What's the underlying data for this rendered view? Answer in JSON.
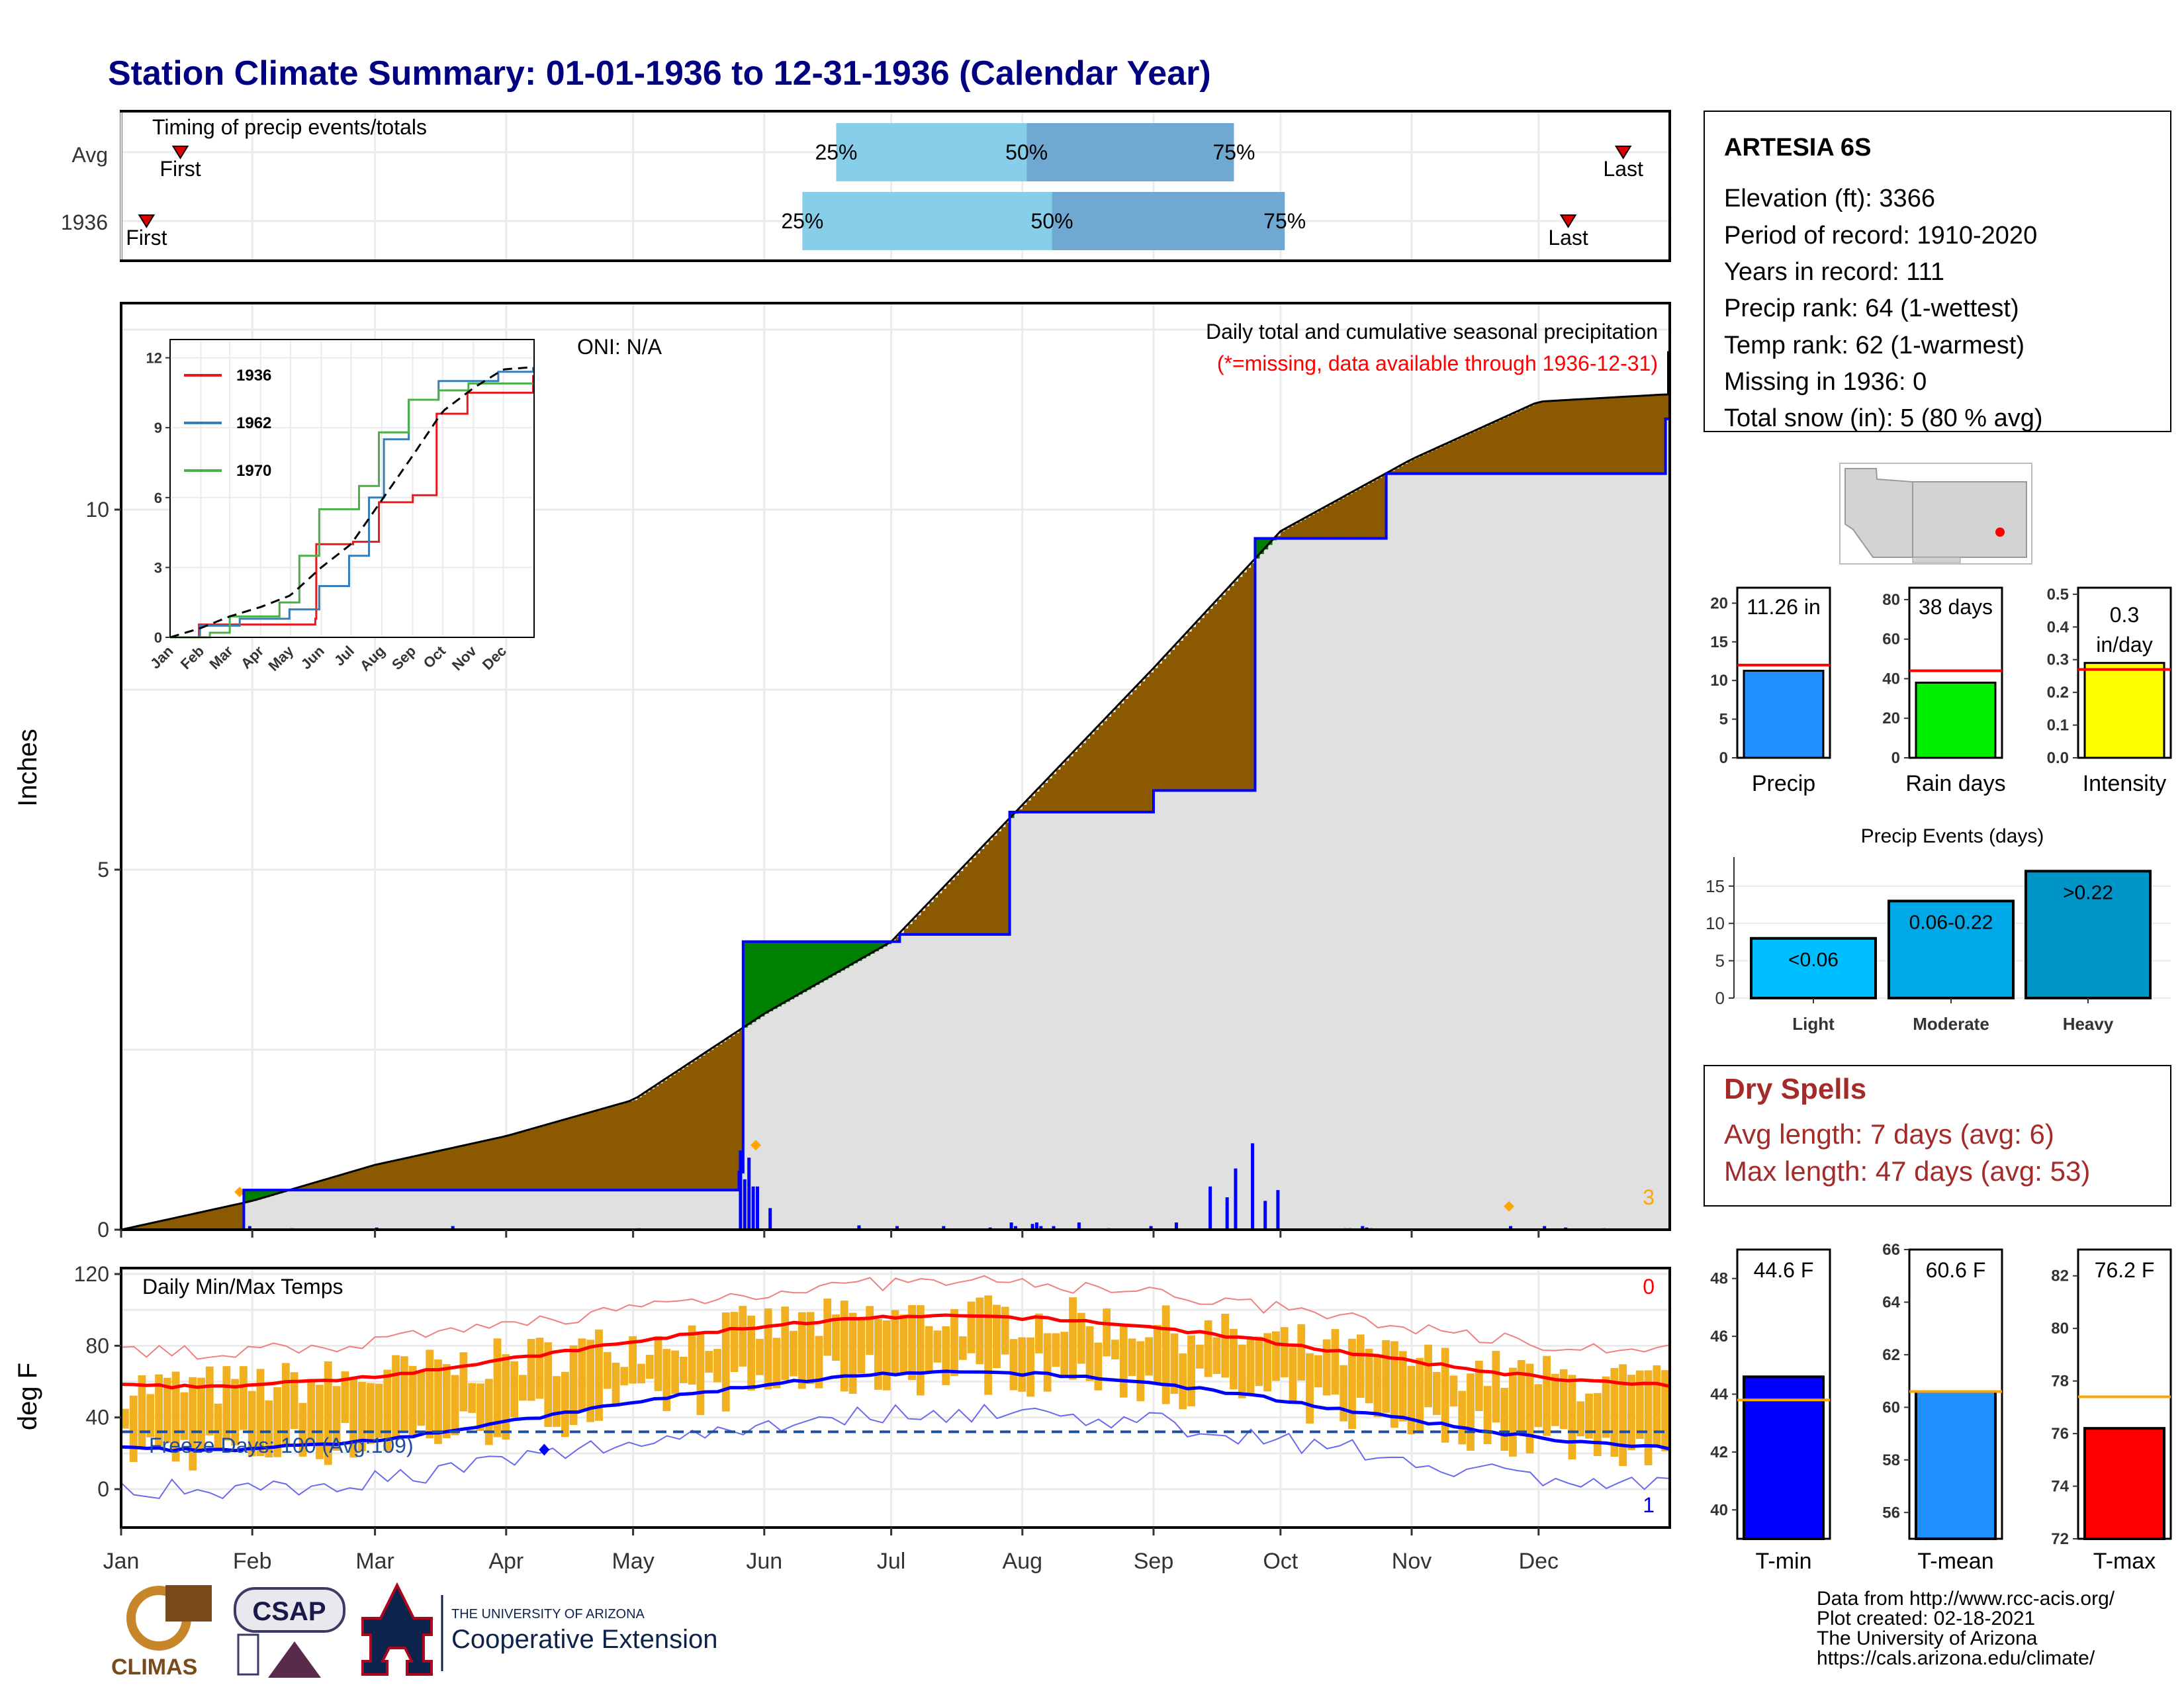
{
  "title": "Station Climate Summary: 01-01-1936 to 12-31-1936 (Calendar Year)",
  "months": [
    "Jan",
    "Feb",
    "Mar",
    "Apr",
    "May",
    "Jun",
    "Jul",
    "Aug",
    "Sep",
    "Oct",
    "Nov",
    "Dec"
  ],
  "timing": {
    "label": "Timing of precip events/totals",
    "rows": [
      {
        "name": "Avg",
        "first_doy": 14,
        "q25_doy": 169,
        "q50_doy": 214,
        "q75_doy": 263,
        "last_doy": 355,
        "first_label": "First",
        "last_label": "Last",
        "q25_label": "25%",
        "q50_label": "50%",
        "q75_label": "75%"
      },
      {
        "name": "1936",
        "first_doy": 6,
        "q25_doy": 161,
        "q50_doy": 220,
        "q75_doy": 275,
        "last_doy": 342,
        "first_label": "First",
        "last_label": "Last",
        "q25_label": "25%",
        "q50_label": "50%",
        "q75_label": "75%"
      }
    ]
  },
  "main": {
    "ylabel": "Inches",
    "y_ticks": [
      "0",
      "5",
      "10"
    ],
    "oni": "ONI: N/A",
    "desc_line1": "Daily total and cumulative seasonal precipitation",
    "desc_line2": "(*=missing, data available through 1936-12-31)",
    "corner_count": "3"
  },
  "inset": {
    "y_ticks": [
      "0",
      "3",
      "6",
      "9",
      "12"
    ],
    "legend": [
      {
        "name": "1936",
        "color": "#e41a1c"
      },
      {
        "name": "1962",
        "color": "#377eb8"
      },
      {
        "name": "1970",
        "color": "#4daf4a"
      }
    ]
  },
  "temps": {
    "label": "Daily Min/Max Temps",
    "ylabel": "deg F",
    "y_ticks": [
      "0",
      "40",
      "80",
      "120"
    ],
    "freeze_text": "Freeze Days: 100 (Avg:109)",
    "count_top": "0",
    "count_bottom": "1"
  },
  "station": {
    "name": "ARTESIA 6S",
    "lines": [
      "Elevation (ft): 3366",
      "Period of record: 1910-2020",
      "Years in record: 111",
      "Precip rank: 64 (1-wettest)",
      "Temp rank: 62 (1-warmest)",
      "Missing in 1936: 0",
      "Total snow (in): 5 (80 % avg)"
    ]
  },
  "summary_bars": [
    {
      "label": "Precip",
      "value_text": "11.26 in",
      "value": 11.26,
      "avg": 12.0,
      "max": 22,
      "ticks": [
        "0",
        "5",
        "10",
        "15",
        "20"
      ],
      "tick_vals": [
        0,
        5,
        10,
        15,
        20
      ],
      "color": "#1e90ff"
    },
    {
      "label": "Rain days",
      "value_text": "38 days",
      "value": 38,
      "avg": 44,
      "max": 86,
      "ticks": [
        "0",
        "20",
        "40",
        "60",
        "80"
      ],
      "tick_vals": [
        0,
        20,
        40,
        60,
        80
      ],
      "color": "#00ee00"
    },
    {
      "label": "Intensity",
      "value_text": "0.3 in/day",
      "value": 0.29,
      "avg": 0.27,
      "max": 0.52,
      "ticks": [
        "0.0",
        "0.1",
        "0.2",
        "0.3",
        "0.4",
        "0.5"
      ],
      "tick_vals": [
        0,
        0.1,
        0.2,
        0.3,
        0.4,
        0.5
      ],
      "color": "#ffff00"
    }
  ],
  "events": {
    "title": "Precip Events (days)",
    "ticks": [
      "0",
      "5",
      "10",
      "15"
    ],
    "bars": [
      {
        "label": "Light",
        "text": "<0.06",
        "value": 8,
        "color": "#00bfff"
      },
      {
        "label": "Moderate",
        "text": "0.06-0.22",
        "value": 13,
        "color": "#00a8e8"
      },
      {
        "label": "Heavy",
        "text": ">0.22",
        "value": 17,
        "color": "#0095c8"
      }
    ]
  },
  "dry_spells": {
    "title": "Dry Spells",
    "avg": "Avg length: 7 days (avg: 6)",
    "max": "Max length: 47 days (avg: 53)"
  },
  "temp_bars": [
    {
      "label": "T-min",
      "value_text": "44.6 F",
      "value": 44.6,
      "avg": 43.8,
      "min": 39,
      "max": 49,
      "ticks": [
        "40",
        "42",
        "44",
        "46",
        "48"
      ],
      "tick_vals": [
        40,
        42,
        44,
        46,
        48
      ],
      "color": "#0000ff"
    },
    {
      "label": "T-mean",
      "value_text": "60.6 F",
      "value": 60.6,
      "avg": 60.6,
      "min": 55,
      "max": 66,
      "ticks": [
        "56",
        "58",
        "60",
        "62",
        "64",
        "66"
      ],
      "tick_vals": [
        56,
        58,
        60,
        62,
        64,
        66
      ],
      "color": "#1e90ff"
    },
    {
      "label": "T-max",
      "value_text": "76.2 F",
      "value": 76.2,
      "avg": 77.4,
      "min": 72,
      "max": 83,
      "ticks": [
        "72",
        "74",
        "76",
        "78",
        "80",
        "82"
      ],
      "tick_vals": [
        72,
        74,
        76,
        78,
        80,
        82
      ],
      "color": "#ff0000"
    }
  ],
  "footer": {
    "lines": [
      "Data from http://www.rcc-acis.org/",
      "Plot created: 02-18-2021",
      "The University of Arizona",
      "https://cals.arizona.edu/climate/"
    ],
    "logo_climas": "CLIMAS",
    "logo_csap": "CSAP",
    "logo_ua_small": "THE UNIVERSITY OF ARIZONA",
    "logo_ua_big": "Cooperative Extension"
  },
  "chart_data": {
    "type": "area",
    "xlabel": "",
    "ylabel": "Inches",
    "ylim": [
      0,
      12.5
    ],
    "series": [
      {
        "name": "1936",
        "x": [
          "1936-01-01",
          "1936-01-30",
          "1936-05-26",
          "1936-05-27",
          "1936-07-03",
          "1936-07-29",
          "1936-09-01",
          "1936-09-25",
          "1936-10-26",
          "1936-12-31"
        ],
        "values": [
          0,
          0.55,
          0.8,
          4.0,
          4.1,
          5.8,
          6.1,
          9.6,
          10.5,
          11.26
        ]
      },
      {
        "x": [
          "1936-01-01",
          "1936-02-01",
          "1936-03-01",
          "1936-04-01",
          "1936-05-01",
          "1936-06-01",
          "1936-07-01",
          "1936-08-01",
          "1936-09-01",
          "1936-10-01",
          "1936-11-01",
          "1936-12-01",
          "1936-12-31"
        ],
        "values": [
          0,
          0.4,
          0.9,
          1.3,
          1.8,
          3.0,
          4.0,
          5.9,
          7.8,
          9.7,
          10.7,
          11.5,
          11.6
        ]
      }
    ]
  }
}
